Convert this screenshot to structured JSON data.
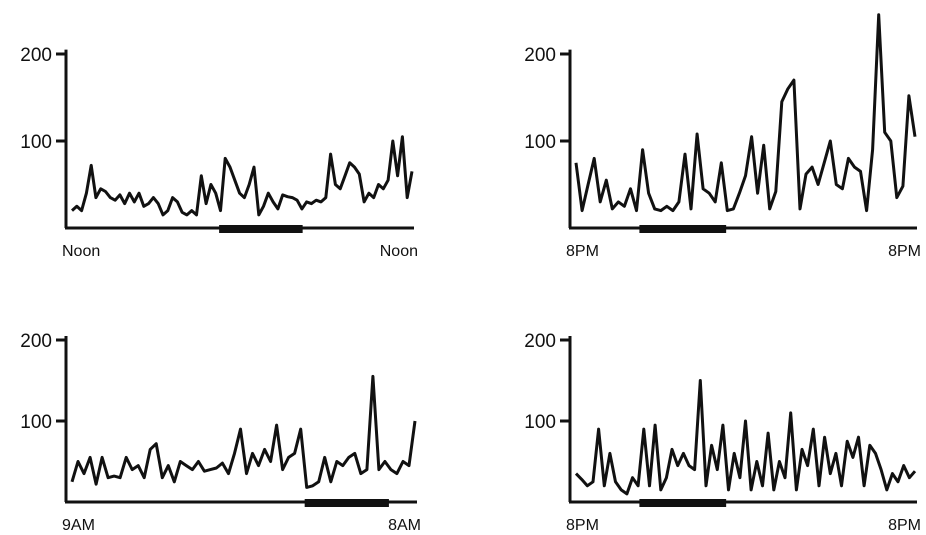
{
  "chart_data": [
    {
      "type": "line",
      "y_ticks": [
        {
          "value": 200,
          "label": "200"
        },
        {
          "value": 100,
          "label": "100"
        }
      ],
      "ylim": [
        0,
        250
      ],
      "x_start_label": "Noon",
      "x_end_label": "Noon",
      "grid": false,
      "shaded_band": [
        0.44,
        0.68
      ],
      "series": [
        {
          "values": [
            20,
            25,
            20,
            40,
            72,
            35,
            45,
            42,
            35,
            32,
            38,
            28,
            40,
            30,
            40,
            25,
            28,
            35,
            28,
            15,
            20,
            35,
            30,
            18,
            15,
            20,
            15,
            60,
            28,
            50,
            40,
            20,
            80,
            70,
            55,
            40,
            35,
            50,
            70,
            15,
            25,
            40,
            30,
            22,
            38,
            36,
            35,
            32,
            22,
            30,
            28,
            32,
            30,
            35,
            85,
            50,
            45,
            60,
            75,
            70,
            62,
            30,
            40,
            35,
            50,
            45,
            55,
            100,
            60,
            105,
            35,
            65
          ]
        }
      ]
    },
    {
      "type": "line",
      "y_ticks": [
        {
          "value": 200,
          "label": "200"
        },
        {
          "value": 100,
          "label": "100"
        }
      ],
      "ylim": [
        0,
        250
      ],
      "x_start_label": "8PM",
      "x_end_label": "8PM",
      "grid": false,
      "shaded_band": [
        0.2,
        0.45
      ],
      "series": [
        {
          "values": [
            75,
            20,
            50,
            80,
            30,
            55,
            22,
            30,
            25,
            45,
            20,
            90,
            40,
            22,
            20,
            25,
            20,
            30,
            85,
            22,
            108,
            45,
            40,
            30,
            75,
            20,
            22,
            40,
            60,
            105,
            40,
            95,
            22,
            42,
            145,
            160,
            170,
            22,
            62,
            70,
            50,
            75,
            100,
            50,
            45,
            80,
            70,
            65,
            20,
            90,
            245,
            110,
            100,
            35,
            48,
            152,
            105
          ]
        }
      ]
    },
    {
      "type": "line",
      "y_ticks": [
        {
          "value": 200,
          "label": "200"
        },
        {
          "value": 100,
          "label": "100"
        }
      ],
      "ylim": [
        0,
        250
      ],
      "x_start_label": "9AM",
      "x_end_label": "8AM",
      "grid": false,
      "shaded_band": [
        0.68,
        0.92
      ],
      "series": [
        {
          "values": [
            25,
            50,
            35,
            55,
            22,
            55,
            30,
            32,
            30,
            55,
            40,
            45,
            30,
            65,
            72,
            30,
            45,
            25,
            50,
            45,
            40,
            50,
            38,
            40,
            42,
            48,
            35,
            60,
            90,
            35,
            60,
            45,
            65,
            50,
            95,
            40,
            55,
            60,
            90,
            18,
            20,
            25,
            55,
            25,
            50,
            45,
            55,
            60,
            35,
            40,
            155,
            40,
            50,
            40,
            35,
            50,
            45,
            100
          ]
        }
      ]
    },
    {
      "type": "line",
      "y_ticks": [
        {
          "value": 200,
          "label": "200"
        },
        {
          "value": 100,
          "label": "100"
        }
      ],
      "ylim": [
        0,
        250
      ],
      "x_start_label": "8PM",
      "x_end_label": "8PM",
      "grid": false,
      "shaded_band": [
        0.2,
        0.45
      ],
      "series": [
        {
          "values": [
            35,
            28,
            20,
            25,
            90,
            20,
            60,
            25,
            15,
            10,
            30,
            20,
            90,
            20,
            95,
            15,
            30,
            65,
            45,
            60,
            45,
            40,
            150,
            20,
            70,
            40,
            95,
            15,
            60,
            30,
            100,
            15,
            50,
            20,
            85,
            15,
            50,
            30,
            110,
            15,
            65,
            45,
            90,
            20,
            80,
            35,
            60,
            20,
            75,
            55,
            80,
            20,
            70,
            60,
            40,
            15,
            35,
            25,
            45,
            30,
            38
          ]
        }
      ]
    }
  ]
}
